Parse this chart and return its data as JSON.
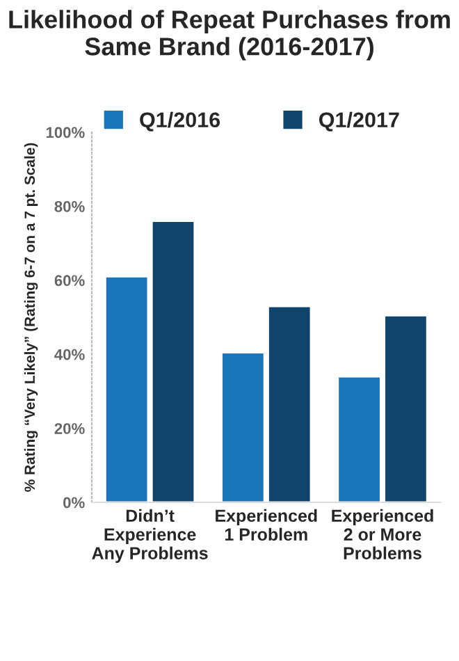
{
  "chart_data": {
    "type": "bar",
    "title": "Likelihood of Repeat Purchases from Same Brand (2016-2017)",
    "ylabel": "% Rating “Very Likely” (Rating 6-7 on a 7 pt. Scale)",
    "categories": [
      "Didn’t\nExperience\nAny Problems",
      "Experienced\n1 Problem",
      "Experienced\n2 or More\nProblems"
    ],
    "series": [
      {
        "name": "Q1/2016",
        "color": "#1a75bb",
        "values": [
          61,
          40.5,
          34
        ]
      },
      {
        "name": "Q1/2017",
        "color": "#10446c",
        "values": [
          76,
          53,
          50.5
        ]
      }
    ],
    "ylim": [
      0,
      100
    ],
    "yticks": [
      {
        "value": 0,
        "label": "0%"
      },
      {
        "value": 20,
        "label": "20%"
      },
      {
        "value": 40,
        "label": "40%"
      },
      {
        "value": 60,
        "label": "60%"
      },
      {
        "value": 80,
        "label": "80%"
      },
      {
        "value": 100,
        "label": "100%"
      }
    ],
    "grid": false,
    "legend": "top"
  }
}
